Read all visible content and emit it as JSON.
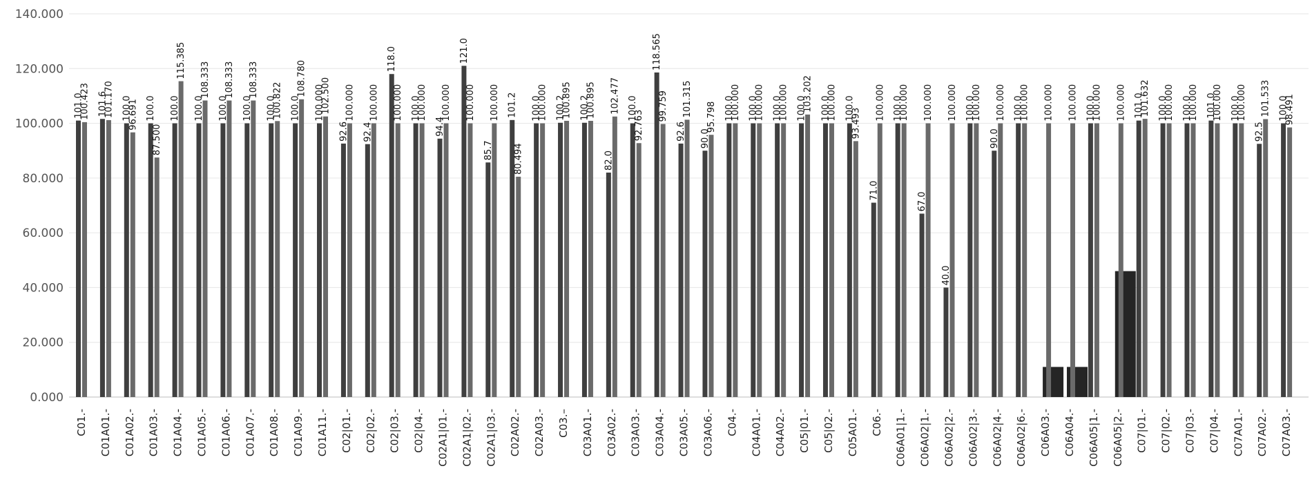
{
  "chart_data": {
    "type": "bar",
    "ylim": [
      0,
      140
    ],
    "yticks": [
      "0.000",
      "20.000",
      "40.000",
      "60.000",
      "80.000",
      "100.000",
      "120.000",
      "140.000"
    ],
    "grid": true,
    "legend": "none",
    "categories": [
      "C01.-",
      "C01A01.-",
      "C01A02.-",
      "C01A03.-",
      "C01A04.-",
      "C01A05.-",
      "C01A06.-",
      "C01A07.-",
      "C01A08.-",
      "C01A09.-",
      "C01A11.-",
      "C02|01.-",
      "C02|02.-",
      "C02|03.-",
      "C02|04.-",
      "C02A1|01.-",
      "C02A1|02.-",
      "C02A1|03.-",
      "C02A02.-",
      "C02A03.-",
      "C03.–",
      "C03A01.-",
      "C03A02.-",
      "C03A03.-",
      "C03A04.-",
      "C03A05.-",
      "C03A06.-",
      "C04.-",
      "C04A01.-",
      "C04A02.-",
      "C05|01.-",
      "C05|02.-",
      "C05A01.-",
      "C06.-",
      "C06A01|1.-",
      "C06A02|1.-",
      "C06A02|2.-",
      "C06A02|3.-",
      "C06A02|4.-",
      "C06A02|6.-",
      "C06A03.-",
      "C06A04.-",
      "C06A05|1.-",
      "C06A05|2.-",
      "C07|01.-",
      "C07|02.-",
      "C07|03.-",
      "C07|04.-",
      "C07A01.-",
      "C07A02.-",
      "C07A03.-"
    ],
    "series": [
      {
        "values": [
          101.0,
          101.6,
          100.0,
          100.0,
          100.0,
          100.0,
          100.0,
          100.0,
          100.0,
          100.0,
          100.0,
          92.6,
          92.4,
          118.0,
          100.0,
          94.4,
          121.0,
          85.7,
          101.2,
          100.0,
          100.2,
          100.2,
          82.0,
          100.0,
          118.565,
          92.6,
          90.0,
          100.0,
          100.0,
          100.0,
          100.0,
          100.0,
          100.0,
          71.0,
          100.0,
          67.0,
          40.0,
          100.0,
          90.0,
          100.0,
          11.0,
          11.0,
          100.0,
          46.0,
          101.0,
          100.0,
          100.0,
          101.0,
          100.0,
          92.5,
          100.0
        ],
        "labels": [
          "101.0",
          "101.6",
          "100.0",
          "100.0",
          "100.0",
          "100.0",
          "100.0",
          "100.0",
          "100.0",
          "100.0",
          "100.000",
          "92.6",
          "92.4",
          "118.0",
          "100.0",
          "94.4",
          "121.0",
          "85.7",
          "101.2",
          "100.0",
          "100.2",
          "100.2",
          "82.0",
          "100.0",
          "118.565",
          "92.6",
          "90.0",
          "100.0",
          "100.0",
          "100.0",
          "100.0",
          "100.0",
          "100.0",
          "71.0",
          "100.0",
          "67.0",
          "40.0",
          "100.0",
          "90.0",
          "100.0",
          "",
          "",
          "100.0",
          "",
          "101.0",
          "100.0",
          "100.0",
          "101.0",
          "100.0",
          "92.5",
          "100.0"
        ]
      },
      {
        "values": [
          100.423,
          101.17,
          96.691,
          87.5,
          115.385,
          108.333,
          108.333,
          108.333,
          100.822,
          108.78,
          102.5,
          100.0,
          100.0,
          100.0,
          100.0,
          100.0,
          100.0,
          100.0,
          80.494,
          100.0,
          100.895,
          100.895,
          102.477,
          92.763,
          99.759,
          101.315,
          95.798,
          100.0,
          100.0,
          100.0,
          103.202,
          100.0,
          93.493,
          100.0,
          100.0,
          100.0,
          100.0,
          100.0,
          100.0,
          100.0,
          100.0,
          100.0,
          100.0,
          100.0,
          101.632,
          100.0,
          100.0,
          100.0,
          100.0,
          101.533,
          98.491
        ],
        "labels": [
          "100.423",
          "101.170",
          "96.691",
          "87.500",
          "115.385",
          "108.333",
          "108.333",
          "108.333",
          "100.822",
          "108.780",
          "102.500",
          "100.000",
          "100.000",
          "100.000",
          "100.000",
          "100.000",
          "100.000",
          "100.000",
          "80.494",
          "100.000",
          "100.895",
          "100.895",
          "102.477",
          "92.763",
          "99.759",
          "101.315",
          "95.798",
          "100.000",
          "100.000",
          "100.000",
          "103.202",
          "100.000",
          "93.493",
          "100.000",
          "100.000",
          "100.000",
          "100.000",
          "100.000",
          "100.000",
          "100.000",
          "100.000",
          "100.000",
          "100.000",
          "100.000",
          "101.632",
          "100.000",
          "100.000",
          "100.000",
          "100.000",
          "101.533",
          "98.491"
        ]
      }
    ]
  }
}
